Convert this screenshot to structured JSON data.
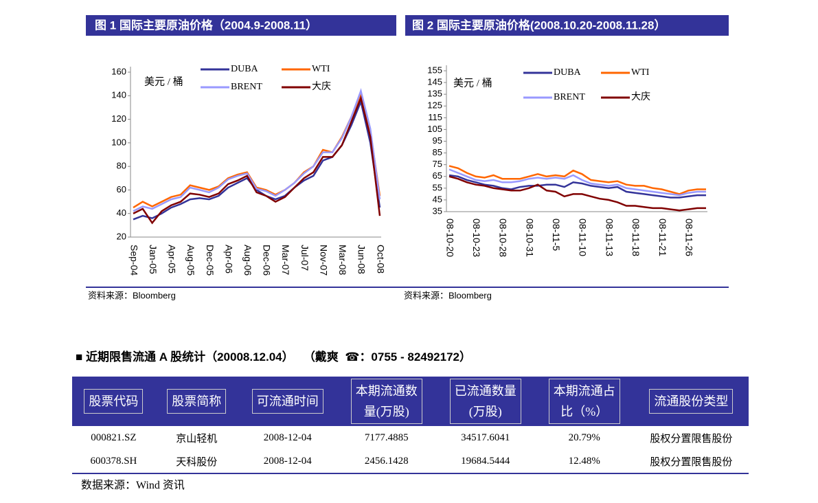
{
  "chart_data": [
    {
      "type": "line",
      "title": "图 1  国际主要原油价格（2004.9-2008.11）",
      "unit": "美元 / 桶",
      "source": "资料来源：Bloomberg",
      "categories": [
        "Sep-04",
        null,
        "Jan-05",
        null,
        "Apr-05",
        null,
        "Aug-05",
        null,
        "Dec-05",
        null,
        "Apr-06",
        null,
        "Aug-06",
        null,
        "Dec-06",
        null,
        "Mar-07",
        null,
        "Jul-07",
        null,
        "Nov-07",
        null,
        "Mar-08",
        null,
        "Jun-08",
        null,
        "Oct-08"
      ],
      "ylim": [
        20,
        160
      ],
      "yticks": [
        20,
        40,
        60,
        80,
        100,
        120,
        140,
        160
      ],
      "series": [
        {
          "name": "DUBA",
          "color": "#333399",
          "values": [
            35,
            38,
            36,
            40,
            45,
            48,
            52,
            53,
            52,
            55,
            62,
            66,
            70,
            60,
            55,
            52,
            55,
            62,
            68,
            72,
            85,
            88,
            98,
            115,
            135,
            100,
            45
          ]
        },
        {
          "name": "WTI",
          "color": "#ff6600",
          "values": [
            45,
            50,
            46,
            50,
            54,
            56,
            64,
            62,
            60,
            63,
            70,
            73,
            75,
            62,
            60,
            56,
            60,
            66,
            75,
            80,
            94,
            92,
            105,
            122,
            142,
            110,
            55
          ]
        },
        {
          "name": "BRENT",
          "color": "#9999ff",
          "values": [
            42,
            46,
            44,
            48,
            52,
            54,
            62,
            60,
            58,
            62,
            69,
            72,
            74,
            61,
            59,
            55,
            60,
            66,
            74,
            80,
            92,
            92,
            104,
            122,
            144,
            112,
            52
          ]
        },
        {
          "name": "大庆",
          "color": "#800000",
          "values": [
            40,
            44,
            32,
            42,
            47,
            50,
            57,
            56,
            54,
            57,
            65,
            68,
            72,
            58,
            55,
            50,
            54,
            62,
            70,
            75,
            88,
            88,
            98,
            118,
            138,
            105,
            38
          ]
        }
      ]
    },
    {
      "type": "line",
      "title": "图 2  国际主要原油价格(2008.10.20-2008.11.28）",
      "unit": "美元 / 桶",
      "source": "资料来源：Bloomberg",
      "categories": [
        "08-10-20",
        null,
        null,
        "08-10-23",
        null,
        null,
        "08-10-28",
        null,
        null,
        "08-10-31",
        null,
        null,
        "08-11-5",
        null,
        null,
        "08-11-10",
        null,
        null,
        "08-11-13",
        null,
        null,
        "08-11-18",
        null,
        null,
        "08-11-21",
        null,
        null,
        "08-11-26",
        null,
        null
      ],
      "ylim": [
        35,
        155
      ],
      "yticks": [
        35,
        45,
        55,
        65,
        75,
        85,
        95,
        105,
        115,
        125,
        135,
        145,
        155
      ],
      "series": [
        {
          "name": "DUBA",
          "color": "#333399",
          "values": [
            66,
            65,
            62,
            60,
            58,
            57,
            55,
            54,
            56,
            57,
            57,
            58,
            58,
            56,
            60,
            59,
            57,
            56,
            55,
            56,
            52,
            51,
            50,
            49,
            48,
            47,
            47,
            48,
            49,
            49
          ]
        },
        {
          "name": "WTI",
          "color": "#ff6600",
          "values": [
            74,
            72,
            68,
            65,
            64,
            66,
            63,
            63,
            63,
            65,
            67,
            65,
            66,
            65,
            70,
            67,
            62,
            61,
            60,
            61,
            58,
            57,
            57,
            55,
            54,
            52,
            50,
            53,
            54,
            54
          ]
        },
        {
          "name": "BRENT",
          "color": "#9999ff",
          "values": [
            71,
            68,
            65,
            62,
            61,
            62,
            60,
            60,
            61,
            63,
            64,
            63,
            64,
            63,
            66,
            62,
            59,
            58,
            57,
            58,
            55,
            54,
            53,
            52,
            51,
            50,
            49,
            51,
            52,
            52
          ]
        },
        {
          "name": "大庆",
          "color": "#800000",
          "values": [
            65,
            63,
            60,
            58,
            57,
            55,
            54,
            53,
            53,
            55,
            58,
            53,
            52,
            48,
            50,
            50,
            48,
            46,
            45,
            43,
            40,
            40,
            39,
            38,
            38,
            37,
            36,
            37,
            38,
            38
          ]
        }
      ]
    }
  ],
  "section": {
    "title": "近期限售流通 A 股统计（20008.12.04）",
    "author": "（戴爽",
    "phone": "：0755 - 82492172）",
    "table": {
      "header": [
        [
          "股票代码"
        ],
        [
          "股票简称"
        ],
        [
          "可流通时间"
        ],
        [
          "本期流通数",
          "量(万股)"
        ],
        [
          "已流通数量",
          "(万股)"
        ],
        [
          "本期流通占",
          "比（%）"
        ],
        [
          "流通股份类型"
        ]
      ],
      "rows": [
        [
          "000821.SZ",
          "京山轻机",
          "2008-12-04",
          "7177.4885",
          "34517.6041",
          "20.79%",
          "股权分置限售股份"
        ],
        [
          "600378.SH",
          "天科股份",
          "2008-12-04",
          "2456.1428",
          "19684.5444",
          "12.48%",
          "股权分置限售股份"
        ]
      ]
    },
    "source": "数据来源：Wind 资讯"
  }
}
